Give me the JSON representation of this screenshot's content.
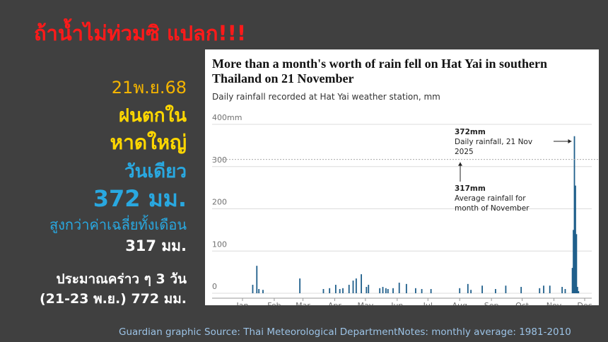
{
  "slide": {
    "headline": "ถ้าน้ำไม่ท่วมซิ แปลก!!!",
    "lines": [
      "21พ.ย.68",
      "ฝนตกใน",
      "หาดใหญ่",
      "วันเดียว",
      "372 มม.",
      "สูงกว่าค่าเฉลี่ยทั้งเดือน",
      "317 มม.",
      "ประมาณคร่าว ๆ 3 วัน",
      "(21-23 พ.ย.) 772 มม."
    ],
    "footer": "Guardian graphic Source: Thai Meteorological DepartmentNotes: monthly average: 1981-2010"
  },
  "chart_data": {
    "type": "bar",
    "title": "More than a month's worth of rain fell on Hat Yai in southern Thailand on 21 November",
    "subtitle": "Daily rainfall recorded at Hat Yai weather station, mm",
    "year_label": "2025",
    "color": "#1f5f8b",
    "ylim": [
      0,
      400
    ],
    "yticks": [
      0,
      100,
      200,
      300,
      {
        "value": 400,
        "label": "400mm"
      }
    ],
    "grid": true,
    "annotations": [
      {
        "value": 372,
        "label": "372mm",
        "text": "Daily rainfall, 21 Nov 2025"
      },
      {
        "value": 317,
        "label": "317mm",
        "text": "Average rainfall for month of November"
      }
    ],
    "categories": [
      "Jan",
      null,
      null,
      null,
      null,
      null,
      null,
      null,
      null,
      null,
      null,
      null,
      null,
      null,
      null,
      null,
      null,
      null,
      null,
      null,
      null,
      null,
      null,
      null,
      null,
      null,
      null,
      null,
      null,
      null,
      null,
      "Feb",
      null,
      null,
      null,
      null,
      null,
      null,
      null,
      null,
      null,
      null,
      null,
      null,
      null,
      null,
      null,
      null,
      null,
      null,
      null,
      null,
      null,
      null,
      null,
      null,
      null,
      null,
      null,
      "Mar",
      null,
      null,
      null,
      null,
      null,
      null,
      null,
      null,
      null,
      null,
      null,
      null,
      null,
      null,
      null,
      null,
      null,
      null,
      null,
      null,
      null,
      null,
      null,
      null,
      null,
      null,
      null,
      null,
      null,
      null,
      "Apr",
      null,
      null,
      null,
      null,
      null,
      null,
      null,
      null,
      null,
      null,
      null,
      null,
      null,
      null,
      null,
      null,
      null,
      null,
      null,
      null,
      null,
      null,
      null,
      null,
      null,
      null,
      null,
      null,
      null,
      "May",
      null,
      null,
      null,
      null,
      null,
      null,
      null,
      null,
      null,
      null,
      null,
      null,
      null,
      null,
      null,
      null,
      null,
      null,
      null,
      null,
      null,
      null,
      null,
      null,
      null,
      null,
      null,
      null,
      null,
      null,
      "Jun",
      null,
      null,
      null,
      null,
      null,
      null,
      null,
      null,
      null,
      null,
      null,
      null,
      null,
      null,
      null,
      null,
      null,
      null,
      null,
      null,
      null,
      null,
      null,
      null,
      null,
      null,
      null,
      null,
      null,
      "Jul",
      null,
      null,
      null,
      null,
      null,
      null,
      null,
      null,
      null,
      null,
      null,
      null,
      null,
      null,
      null,
      null,
      null,
      null,
      null,
      null,
      null,
      null,
      null,
      null,
      null,
      null,
      null,
      null,
      null,
      null,
      "Aug",
      null,
      null,
      null,
      null,
      null,
      null,
      null,
      null,
      null,
      null,
      null,
      null,
      null,
      null,
      null,
      null,
      null,
      null,
      null,
      null,
      null,
      null,
      null,
      null,
      null,
      null,
      null,
      null,
      null,
      null,
      "Sep",
      null,
      null,
      null,
      null,
      null,
      null,
      null,
      null,
      null,
      null,
      null,
      null,
      null,
      null,
      null,
      null,
      null,
      null,
      null,
      null,
      null,
      null,
      null,
      null,
      null,
      null,
      null,
      null,
      null,
      "Oct",
      null,
      null,
      null,
      null,
      null,
      null,
      null,
      null,
      null,
      null,
      null,
      null,
      null,
      null,
      null,
      null,
      null,
      null,
      null,
      null,
      null,
      null,
      null,
      null,
      null,
      null,
      null,
      null,
      null,
      null,
      "Nov",
      null,
      null,
      null,
      null,
      null,
      null,
      null,
      null,
      null,
      null,
      null,
      null,
      null,
      null,
      null,
      null,
      null,
      null,
      null,
      null,
      null,
      null,
      null,
      null,
      null,
      null,
      null,
      null,
      null,
      "Dec"
    ],
    "values": [
      0,
      0,
      0,
      0,
      0,
      0,
      0,
      0,
      0,
      0,
      20,
      0,
      0,
      0,
      65,
      0,
      10,
      0,
      0,
      0,
      8,
      0,
      0,
      0,
      0,
      0,
      0,
      0,
      0,
      0,
      0,
      0,
      0,
      0,
      0,
      0,
      0,
      0,
      0,
      0,
      0,
      0,
      0,
      0,
      0,
      0,
      0,
      0,
      0,
      0,
      0,
      0,
      0,
      0,
      0,
      0,
      35,
      0,
      0,
      0,
      0,
      0,
      0,
      0,
      0,
      0,
      0,
      0,
      0,
      0,
      0,
      0,
      0,
      0,
      0,
      0,
      0,
      0,
      0,
      10,
      0,
      0,
      0,
      0,
      0,
      12,
      0,
      0,
      0,
      0,
      0,
      20,
      0,
      0,
      0,
      10,
      0,
      0,
      12,
      0,
      0,
      0,
      0,
      0,
      20,
      0,
      0,
      0,
      30,
      0,
      0,
      35,
      0,
      0,
      0,
      0,
      45,
      0,
      0,
      0,
      0,
      15,
      0,
      20,
      0,
      0,
      0,
      0,
      0,
      0,
      0,
      0,
      0,
      0,
      12,
      0,
      0,
      15,
      0,
      0,
      12,
      0,
      10,
      0,
      0,
      0,
      0,
      12,
      0,
      0,
      0,
      0,
      0,
      25,
      0,
      0,
      0,
      0,
      0,
      0,
      22,
      0,
      0,
      0,
      0,
      0,
      0,
      0,
      0,
      12,
      0,
      0,
      0,
      0,
      0,
      10,
      0,
      0,
      0,
      0,
      0,
      0,
      0,
      0,
      10,
      0,
      0,
      0,
      0,
      0,
      0,
      0,
      0,
      0,
      0,
      0,
      0,
      0,
      0,
      0,
      0,
      0,
      0,
      0,
      0,
      0,
      0,
      0,
      0,
      0,
      0,
      0,
      12,
      0,
      0,
      0,
      0,
      0,
      0,
      0,
      22,
      0,
      0,
      8,
      0,
      0,
      0,
      0,
      0,
      0,
      0,
      0,
      0,
      0,
      18,
      0,
      0,
      0,
      0,
      0,
      0,
      0,
      0,
      0,
      0,
      0,
      0,
      10,
      0,
      0,
      0,
      0,
      0,
      0,
      0,
      0,
      0,
      18,
      0,
      0,
      0,
      0,
      0,
      0,
      0,
      0,
      0,
      0,
      0,
      0,
      0,
      0,
      15,
      0,
      0,
      0,
      0,
      0,
      0,
      0,
      0,
      0,
      0,
      0,
      0,
      0,
      0,
      0,
      0,
      0,
      12,
      0,
      0,
      0,
      18,
      0,
      0,
      0,
      0,
      0,
      18,
      0,
      0,
      0,
      0,
      0,
      0,
      0,
      0,
      0,
      0,
      0,
      15,
      0,
      0,
      10,
      0,
      0,
      0,
      0,
      0,
      0,
      60,
      150,
      372,
      255,
      140,
      15,
      5,
      0,
      0,
      0,
      0,
      0,
      0
    ]
  }
}
